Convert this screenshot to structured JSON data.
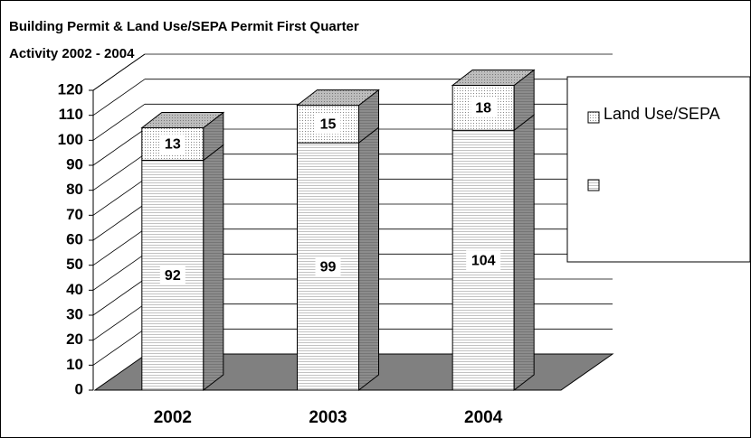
{
  "chart_data": {
    "type": "bar",
    "stacked": true,
    "three_d": true,
    "title": [
      "Building Permit & Land Use/SEPA Permit First Quarter",
      "Activity 2002 - 2004"
    ],
    "categories": [
      "2002",
      "2003",
      "2004"
    ],
    "series": [
      {
        "color": "#ffffff",
        "values": [
          92,
          99,
          104
        ]
      },
      {
        "name": "Land Use/SEPA",
        "color": "#ffffff",
        "values": [
          13,
          15,
          18
        ]
      }
    ],
    "ylim": [
      0,
      120
    ],
    "yticks": [
      0,
      10,
      20,
      30,
      40,
      50,
      60,
      70,
      80,
      90,
      100,
      110,
      120
    ],
    "grid": true
  }
}
